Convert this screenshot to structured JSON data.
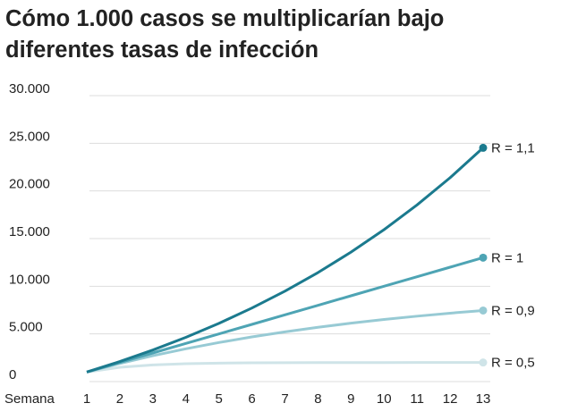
{
  "chart_data": {
    "type": "line",
    "title": "Cómo 1.000 casos se multiplicarían bajo diferentes tasas de infección",
    "x_label": "Semana",
    "x": [
      1,
      2,
      3,
      4,
      5,
      6,
      7,
      8,
      9,
      10,
      11,
      12,
      13
    ],
    "xlim": [
      1,
      13
    ],
    "xticks": [
      1,
      2,
      3,
      4,
      5,
      6,
      7,
      8,
      9,
      10,
      11,
      12,
      13
    ],
    "ylim": [
      0,
      30000
    ],
    "yticks": [
      0,
      {
        "value": 5000,
        "label": "5.000"
      },
      {
        "value": 10000,
        "label": "10.000"
      },
      {
        "value": 15000,
        "label": "15.000"
      },
      {
        "value": 20000,
        "label": "20.000"
      },
      {
        "value": 25000,
        "label": "25.000"
      },
      {
        "value": 30000,
        "label": "30.000"
      }
    ],
    "grid": true,
    "series": [
      {
        "name": "R = 1,1",
        "color": "#1b7a8e",
        "values": [
          1000,
          2100,
          3310,
          4641,
          6105,
          7716,
          9487,
          11436,
          13579,
          15937,
          18531,
          21384,
          24523
        ]
      },
      {
        "name": "R = 1",
        "color": "#4ea4b4",
        "values": [
          1000,
          2000,
          3000,
          4000,
          5000,
          6000,
          7000,
          8000,
          9000,
          10000,
          11000,
          12000,
          13000
        ]
      },
      {
        "name": "R = 0,9",
        "color": "#97cad4",
        "values": [
          1000,
          1900,
          2710,
          3439,
          4095,
          4686,
          5217,
          5695,
          6126,
          6513,
          6862,
          7176,
          7458
        ]
      },
      {
        "name": "R = 0,5",
        "color": "#cfe4e8",
        "values": [
          1000,
          1500,
          1750,
          1875,
          1938,
          1969,
          1984,
          1992,
          1996,
          1998,
          1999,
          2000,
          2000
        ]
      }
    ]
  }
}
